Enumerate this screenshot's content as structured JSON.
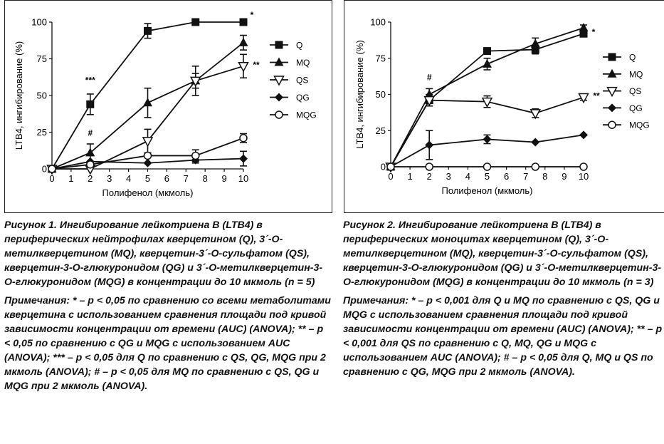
{
  "charts": [
    {
      "caption": "Рисунок 1. Ингибирование лейкотриена B (LTB4) в периферических нейтрофилах кверцетином (Q), 3´-О-метилкверцетином (MQ), кверцетин-3´-О-сульфатом (QS), кверцетин-3-О-глюкуронидом (QG) и 3´-О-метилкверцетин-3-О-глюкуронидом (MQG) в концентрации до 10 мкмоль (n = 5)",
      "notes": "Примечания: * – р < 0,05 по сравнению со всеми метаболитами кверцетина с использованием сравнения площади под кривой зависимости концентрации от времени (AUC) (ANOVA); ** – р < 0,05 по сравнению с QG и MQG с использованием AUC (ANOVA); *** – р < 0,05 для Q по сравнению с QS, QG, MQG при 2 мкмоль (ANOVA); # – р < 0,05 для MQ по сравнению с QS, QG и MQG при 2 мкмоль (ANOVA)."
    },
    {
      "caption": "Рисунок 2. Ингибирование лейкотриена B (LTB4) в периферических моноцитах кверцетином (Q), 3´-О-метилкверцетином (MQ), кверцетин-3´-О-сульфатом (QS), кверцетин-3-О-глюкуронидом (QG) и 3´-О-метилкверцетин-3-О-глюкуронидом (MQG) в концентрации до 10 мкмоль (n = 3)",
      "notes": "Примечания: * – р < 0,001 для Q и MQ по сравнению с QS, QG и MQG с использованием сравнения площади под кривой зависимости концентрации от времени (AUC) (ANOVA); ** – р < 0,001 для QS по сравнению с Q, MQ, QG и MQG с использованием AUC (ANOVA); # – р < 0,05 для Q, MQ и QS по сравнению с QG, MQG при 2 мкмоль (ANOVA)."
    }
  ],
  "chart_data": [
    {
      "type": "line",
      "xlabel": "Полифенол (мкмоль)",
      "ylabel": "LTB4, ингибирование (%)",
      "xlim": [
        0,
        10
      ],
      "ylim": [
        0,
        100
      ],
      "x_ticks": [
        0,
        1,
        2,
        3,
        4,
        5,
        6,
        7,
        8,
        9,
        10
      ],
      "y_ticks": [
        0,
        25,
        50,
        75,
        100
      ],
      "legend_position": "right",
      "series": [
        {
          "name": "Q",
          "marker": "square",
          "x": [
            0,
            2,
            5,
            7.5,
            10
          ],
          "y": [
            0,
            44,
            94,
            100,
            100
          ],
          "err": [
            0,
            7,
            5,
            0,
            0
          ]
        },
        {
          "name": "MQ",
          "marker": "triangle-up",
          "x": [
            0,
            2,
            5,
            7.5,
            10
          ],
          "y": [
            0,
            11,
            45,
            60,
            86
          ],
          "err": [
            0,
            6,
            10,
            10,
            5
          ]
        },
        {
          "name": "QS",
          "marker": "triangle-down-open",
          "x": [
            0,
            2,
            5,
            7.5,
            10
          ],
          "y": [
            0,
            0,
            19,
            60,
            70
          ],
          "err": [
            0,
            0,
            8,
            5,
            8
          ]
        },
        {
          "name": "QG",
          "marker": "diamond",
          "x": [
            0,
            2,
            5,
            7.5,
            10
          ],
          "y": [
            0,
            5,
            4,
            6,
            7
          ],
          "err": [
            0,
            0,
            0,
            2,
            5
          ]
        },
        {
          "name": "MQG",
          "marker": "circle-open",
          "x": [
            0,
            2,
            5,
            7.5,
            10
          ],
          "y": [
            0,
            3,
            9,
            9,
            21
          ],
          "err": [
            0,
            0,
            0,
            4,
            3
          ]
        }
      ],
      "annotations": [
        {
          "text": "*",
          "x": 10,
          "y": 100,
          "dx": 12,
          "dy": -6
        },
        {
          "text": "**",
          "x": 10,
          "y": 70,
          "dx": 18,
          "dy": 2
        },
        {
          "text": "***",
          "x": 2,
          "y": 44,
          "dx": 0,
          "dy": -30
        },
        {
          "text": "#",
          "x": 2,
          "y": 11,
          "dx": 0,
          "dy": -24
        }
      ]
    },
    {
      "type": "line",
      "xlabel": "Полифенол (мкмоль)",
      "ylabel": "LTB4, ингибирование (%)",
      "xlim": [
        0,
        10
      ],
      "ylim": [
        0,
        100
      ],
      "x_ticks": [
        0,
        1,
        2,
        3,
        4,
        5,
        6,
        7,
        8,
        9,
        10
      ],
      "y_ticks": [
        0,
        25,
        50,
        75,
        100
      ],
      "legend_position": "right",
      "series": [
        {
          "name": "Q",
          "marker": "square",
          "x": [
            0,
            2,
            5,
            7.5,
            10
          ],
          "y": [
            0,
            46,
            80,
            81,
            92
          ],
          "err": [
            0,
            4,
            2,
            3,
            2
          ]
        },
        {
          "name": "MQ",
          "marker": "triangle-up",
          "x": [
            0,
            2,
            5,
            7.5,
            10
          ],
          "y": [
            0,
            50,
            71,
            85,
            96
          ],
          "err": [
            0,
            4,
            4,
            4,
            2
          ]
        },
        {
          "name": "QS",
          "marker": "triangle-down-open",
          "x": [
            0,
            2,
            5,
            7.5,
            10
          ],
          "y": [
            0,
            46,
            45,
            37,
            48
          ],
          "err": [
            0,
            0,
            4,
            3,
            2
          ]
        },
        {
          "name": "QG",
          "marker": "diamond",
          "x": [
            0,
            2,
            5,
            7.5,
            10
          ],
          "y": [
            0,
            15,
            19,
            17,
            22
          ],
          "err": [
            0,
            10,
            3,
            0,
            0
          ]
        },
        {
          "name": "MQG",
          "marker": "circle-open",
          "x": [
            0,
            2,
            5,
            7.5,
            10
          ],
          "y": [
            0,
            0,
            0,
            0,
            0
          ],
          "err": [
            0,
            0,
            0,
            0,
            0
          ]
        }
      ],
      "annotations": [
        {
          "text": "*",
          "x": 10,
          "y": 92,
          "dx": 14,
          "dy": 2
        },
        {
          "text": "**",
          "x": 10,
          "y": 48,
          "dx": 18,
          "dy": 2
        },
        {
          "text": "#",
          "x": 2,
          "y": 50,
          "dx": 0,
          "dy": -20
        }
      ]
    }
  ]
}
